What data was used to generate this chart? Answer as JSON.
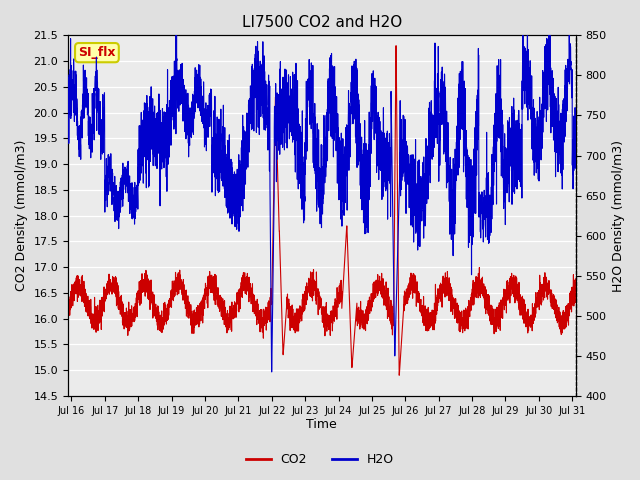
{
  "title": "LI7500 CO2 and H2O",
  "xlabel": "Time",
  "ylabel_left": "CO2 Density (mmol/m3)",
  "ylabel_right": "H2O Density (mmol/m3)",
  "ylim_left": [
    14.5,
    21.5
  ],
  "ylim_right": [
    400,
    850
  ],
  "xtick_positions": [
    16,
    17,
    18,
    19,
    20,
    21,
    22,
    23,
    24,
    25,
    26,
    27,
    28,
    29,
    30,
    31
  ],
  "xtick_labels": [
    "Jul 16",
    "Jul 17",
    "Jul 18",
    "Jul 19",
    "Jul 20",
    "Jul 21",
    "Jul 22",
    "Jul 23",
    "Jul 24",
    "Jul 25",
    "Jul 26",
    "Jul 27",
    "Jul 28",
    "Jul 29",
    "Jul 30",
    "Jul 31"
  ],
  "yticks_left": [
    14.5,
    15.0,
    15.5,
    16.0,
    16.5,
    17.0,
    17.5,
    18.0,
    18.5,
    19.0,
    19.5,
    20.0,
    20.5,
    21.0,
    21.5
  ],
  "yticks_right": [
    400,
    450,
    500,
    550,
    600,
    650,
    700,
    750,
    800,
    850
  ],
  "co2_color": "#cc0000",
  "h2o_color": "#0000cc",
  "bg_color": "#e0e0e0",
  "plot_bg": "#ebebeb",
  "annotation_text": "SI_flx",
  "annotation_bg": "#ffffaa",
  "annotation_border": "#cccc00",
  "legend_co2": "CO2",
  "legend_h2o": "H2O",
  "n_points": 4000,
  "x_start": 15.9,
  "x_end": 31.1
}
